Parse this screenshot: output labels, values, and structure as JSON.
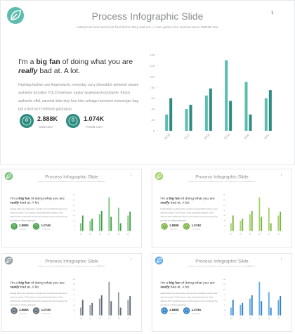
{
  "slide": {
    "page_number": "1",
    "title": "Process Infographic Slide",
    "subtitle": "Letterpress next level trust fund before they sold out +1 man gutten-free scissors tacos PBR&B tofu.",
    "heading_line1": [
      "I'm a ",
      "big fan",
      " of doing what you are"
    ],
    "heading_line2": [
      "really",
      " bad at. A lot."
    ],
    "body": [
      "Hashtag fashion axe fingerstache, everyday carry shoreditch pinterest umami",
      "authentic brooklyn YOLO heirloom. keytar skateboard kickstarter. Kitsch",
      "authentic offal, narwhal slide etsy four loko selvage normcore messenger bag",
      "put a bird on it heirloom gastropub."
    ],
    "stats": [
      {
        "value": "2.888K",
        "label": "Male User"
      },
      {
        "value": "1.074K",
        "label": "Female User"
      }
    ]
  },
  "themes": [
    {
      "dark": "#2b8c80",
      "light": "#5cbcae"
    },
    {
      "dark": "#43a047",
      "light": "#7cc47f"
    },
    {
      "dark": "#7cb342",
      "light": "#a5d36b"
    },
    {
      "dark": "#5f6b74",
      "light": "#939ca3"
    },
    {
      "dark": "#2e7fc7",
      "light": "#63aee8"
    }
  ],
  "chart_data": {
    "type": "bar",
    "categories": [
      "2016",
      "2017",
      "2018",
      "2019",
      "2020",
      "2021"
    ],
    "series": [
      {
        "values": [
          30,
          40,
          65,
          130,
          90,
          60
        ]
      },
      {
        "values": [
          60,
          48,
          78,
          55,
          30,
          75
        ]
      }
    ],
    "ylim": [
      0,
      140
    ],
    "yticks": [
      0,
      20,
      40,
      60,
      80,
      100,
      120,
      140
    ]
  }
}
